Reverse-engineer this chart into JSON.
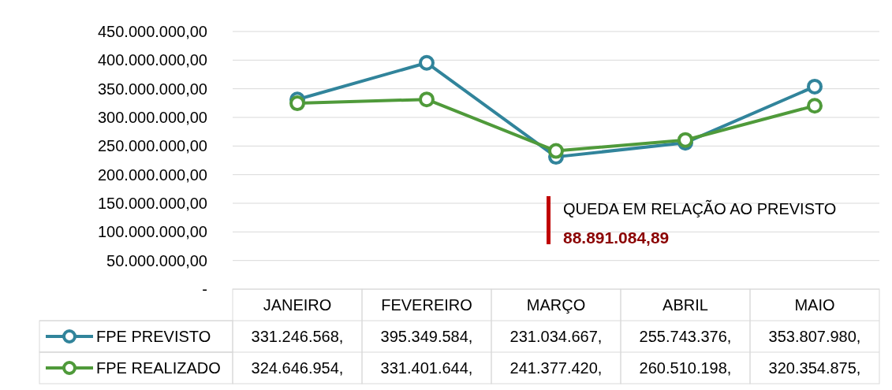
{
  "chart_data": {
    "type": "line",
    "categories": [
      "JANEIRO",
      "FEVEREIRO",
      "MARÇO",
      "ABRIL",
      "MAIO"
    ],
    "series": [
      {
        "name": "FPE PREVISTO",
        "color": "#31849b",
        "values": [
          331246568,
          395349584,
          231034667,
          255743376,
          353807980
        ],
        "value_labels": [
          "331.246.568,",
          "395.349.584,",
          "231.034.667,",
          "255.743.376,",
          "353.807.980,"
        ]
      },
      {
        "name": "FPE REALIZADO",
        "color": "#4f9a3a",
        "values": [
          324646954,
          331401644,
          241377420,
          260510198,
          320354875
        ],
        "value_labels": [
          "324.646.954,",
          "331.401.644,",
          "241.377.420,",
          "260.510.198,",
          "320.354.875,"
        ]
      }
    ],
    "ylim": [
      0,
      450000000
    ],
    "yticks": [
      {
        "value": 0,
        "label": "-"
      },
      {
        "value": 50000000,
        "label": "50.000.000,00"
      },
      {
        "value": 100000000,
        "label": "100.000.000,00"
      },
      {
        "value": 150000000,
        "label": "150.000.000,00"
      },
      {
        "value": 200000000,
        "label": "200.000.000,00"
      },
      {
        "value": 250000000,
        "label": "250.000.000,00"
      },
      {
        "value": 300000000,
        "label": "300.000.000,00"
      },
      {
        "value": 350000000,
        "label": "350.000.000,00"
      },
      {
        "value": 400000000,
        "label": "400.000.000,00"
      },
      {
        "value": 450000000,
        "label": "450.000.000,00"
      }
    ],
    "grid": "y",
    "legend": "bottom",
    "marker": "circle",
    "line_style": "solid",
    "annotations": [
      "QUEDA EM RELAÇÃO AO PREVISTO",
      "88.891.084,89"
    ]
  }
}
